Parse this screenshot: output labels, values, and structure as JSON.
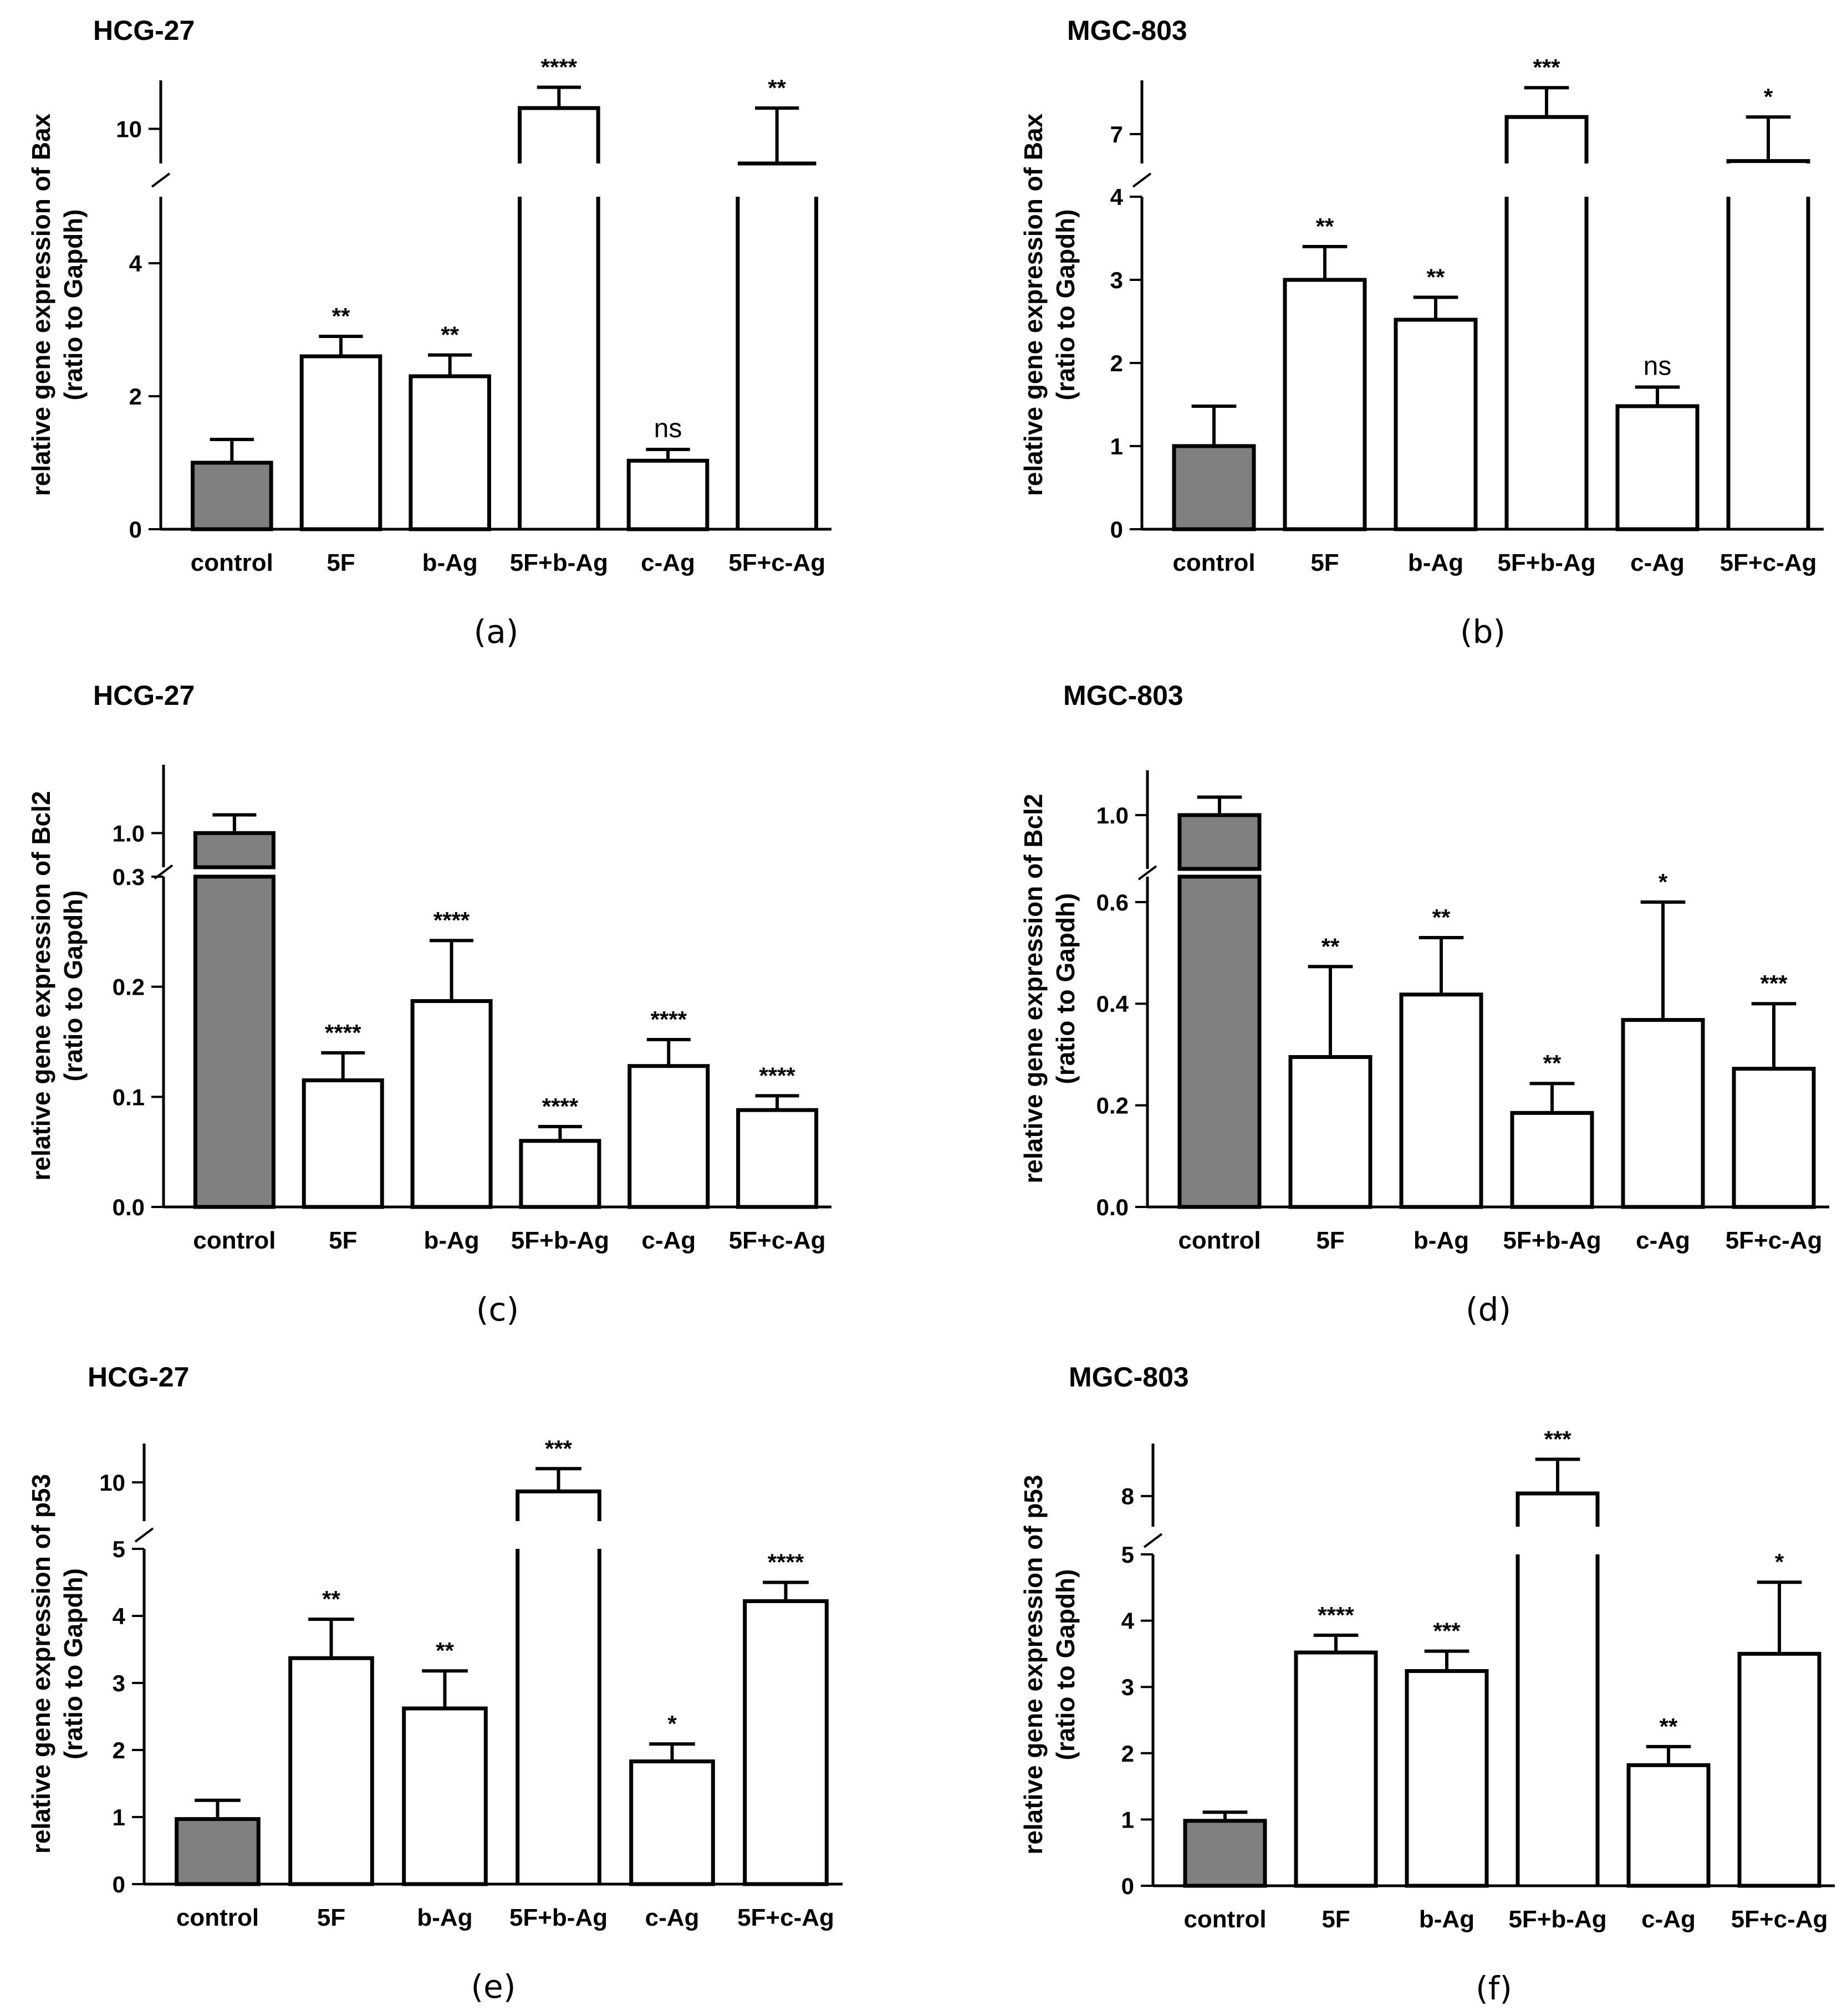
{
  "chart_data": [
    {
      "type": "bar",
      "panel": "(a)",
      "title": "HCG-27",
      "ylabel": [
        "relative gene expression of Bax",
        "(ratio to Gapdh)"
      ],
      "categories": [
        "control",
        "5F",
        "b-Ag",
        "5F+b-Ag",
        "c-Ag",
        "5F+c-Ag"
      ],
      "values": [
        1.0,
        2.6,
        2.3,
        10.3,
        1.03,
        9.5
      ],
      "errors": [
        0.35,
        0.3,
        0.32,
        0.3,
        0.17,
        0.8
      ],
      "significance": [
        "",
        "**",
        "**",
        "****",
        "ns",
        "**"
      ],
      "highlight": [
        true,
        false,
        false,
        false,
        false,
        false
      ],
      "axis": {
        "lower": [
          0,
          5
        ],
        "upper": [
          9.5,
          10.7
        ],
        "lower_ticks": [
          0,
          2,
          4
        ],
        "upper_ticks": [
          10
        ]
      }
    },
    {
      "type": "bar",
      "panel": "(b)",
      "title": "MGC-803",
      "ylabel": [
        "relative gene expression of Bax",
        "(ratio to Gapdh)"
      ],
      "categories": [
        "control",
        "5F",
        "b-Ag",
        "5F+b-Ag",
        "c-Ag",
        "5F+c-Ag"
      ],
      "values": [
        1.0,
        3.0,
        2.52,
        7.35,
        1.48,
        6.45
      ],
      "errors": [
        0.48,
        0.4,
        0.27,
        0.6,
        0.23,
        0.9
      ],
      "significance": [
        "",
        "**",
        "**",
        "***",
        "ns",
        "*"
      ],
      "highlight": [
        true,
        false,
        false,
        false,
        false,
        false
      ],
      "axis": {
        "lower": [
          0,
          4
        ],
        "upper": [
          6.4,
          8.1
        ],
        "lower_ticks": [
          0,
          1,
          2,
          3,
          4
        ],
        "upper_ticks": [
          7
        ]
      }
    },
    {
      "type": "bar",
      "panel": "(c)",
      "title": "HCG-27",
      "ylabel": [
        "relative gene expression of Bcl2",
        "(ratio to Gapdh)"
      ],
      "categories": [
        "control",
        "5F",
        "b-Ag",
        "5F+b-Ag",
        "c-Ag",
        "5F+c-Ag"
      ],
      "values": [
        1.0,
        0.115,
        0.187,
        0.06,
        0.128,
        0.088
      ],
      "errors": [
        0.08,
        0.025,
        0.055,
        0.013,
        0.024,
        0.013
      ],
      "significance": [
        "",
        "****",
        "****",
        "****",
        "****",
        "****"
      ],
      "highlight": [
        true,
        false,
        false,
        false,
        false,
        false
      ],
      "axis": {
        "lower": [
          0,
          0.3
        ],
        "upper": [
          0.85,
          1.3
        ],
        "lower_ticks": [
          0.0,
          0.1,
          0.2,
          0.3
        ],
        "upper_ticks": [
          1.0
        ]
      }
    },
    {
      "type": "bar",
      "panel": "(d)",
      "title": "MGC-803",
      "ylabel": [
        "relative gene expression of Bcl2",
        "(ratio to Gapdh)"
      ],
      "categories": [
        "control",
        "5F",
        "b-Ag",
        "5F+b-Ag",
        "c-Ag",
        "5F+c-Ag"
      ],
      "values": [
        1.0,
        0.295,
        0.418,
        0.185,
        0.368,
        0.272
      ],
      "errors": [
        0.04,
        0.178,
        0.112,
        0.058,
        0.232,
        0.128
      ],
      "significance": [
        "",
        "**",
        "**",
        "**",
        "*",
        "***"
      ],
      "highlight": [
        true,
        false,
        false,
        false,
        false,
        false
      ],
      "axis": {
        "lower": [
          0,
          0.65
        ],
        "upper": [
          0.88,
          1.1
        ],
        "lower_ticks": [
          0.0,
          0.2,
          0.4,
          0.6
        ],
        "upper_ticks": [
          1.0
        ]
      }
    },
    {
      "type": "bar",
      "panel": "(e)",
      "title": "HCG-27",
      "ylabel": [
        "relative gene expression of p53",
        "(ratio to Gapdh)"
      ],
      "categories": [
        "control",
        "5F",
        "b-Ag",
        "5F+b-Ag",
        "c-Ag",
        "5F+c-Ag"
      ],
      "values": [
        0.97,
        3.37,
        2.62,
        9.65,
        1.83,
        4.22
      ],
      "errors": [
        0.28,
        0.58,
        0.56,
        0.88,
        0.26,
        0.28
      ],
      "significance": [
        "",
        "**",
        "**",
        "***",
        "*",
        "****"
      ],
      "highlight": [
        true,
        false,
        false,
        false,
        false,
        false
      ],
      "axis": {
        "lower": [
          0,
          5
        ],
        "upper": [
          8.5,
          11.5
        ],
        "lower_ticks": [
          0,
          1,
          2,
          3,
          4,
          5
        ],
        "upper_ticks": [
          10
        ]
      }
    },
    {
      "type": "bar",
      "panel": "(f)",
      "title": "MGC-803",
      "ylabel": [
        "relative gene expression of p53",
        "(ratio to Gapdh)"
      ],
      "categories": [
        "control",
        "5F",
        "b-Ag",
        "5F+b-Ag",
        "c-Ag",
        "5F+c-Ag"
      ],
      "values": [
        0.98,
        3.52,
        3.24,
        8.06,
        1.82,
        3.5
      ],
      "errors": [
        0.13,
        0.26,
        0.3,
        0.78,
        0.28,
        1.08
      ],
      "significance": [
        "",
        "****",
        "***",
        "***",
        "**",
        "*"
      ],
      "highlight": [
        true,
        false,
        false,
        false,
        false,
        false
      ],
      "axis": {
        "lower": [
          0,
          5
        ],
        "upper": [
          7.3,
          9.2
        ],
        "lower_ticks": [
          0,
          1,
          2,
          3,
          4,
          5
        ],
        "upper_ticks": [
          8
        ]
      }
    }
  ],
  "colors": {
    "control_fill": "#808080",
    "bar_fill": "#ffffff",
    "stroke": "#000000"
  }
}
